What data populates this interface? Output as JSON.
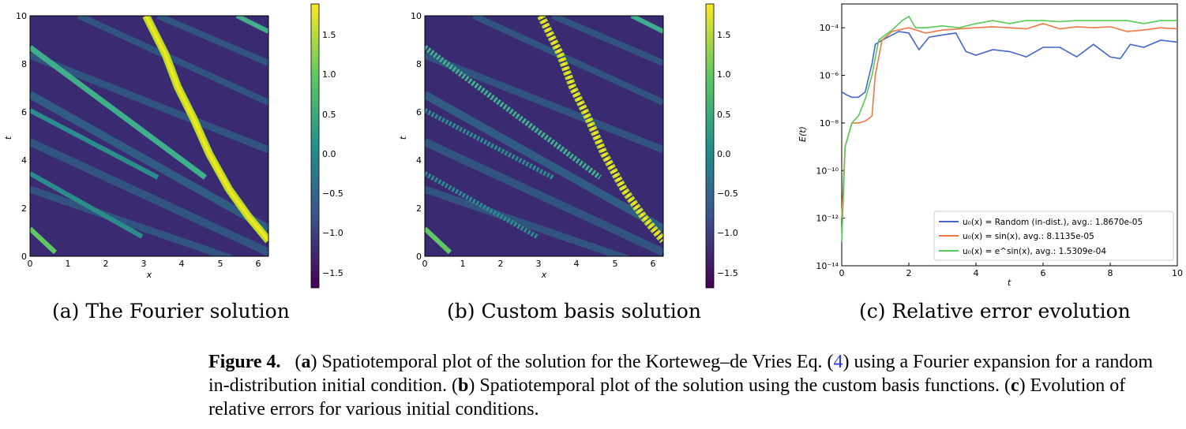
{
  "heatmap_common": {
    "x_ticks": [
      "0",
      "1",
      "2",
      "3",
      "4",
      "5",
      "6"
    ],
    "t_ticks": [
      "0",
      "2",
      "4",
      "6",
      "8",
      "10"
    ],
    "xlabel": "x",
    "ylabel": "t",
    "colorbar_ticks": [
      "1.5",
      "1.0",
      "0.5",
      "0.0",
      "−0.5",
      "−1.0",
      "−1.5"
    ]
  },
  "panel_a": {
    "subcaption": "(a) The Fourier solution"
  },
  "panel_b": {
    "subcaption": "(b) Custom basis solution"
  },
  "panel_c": {
    "subcaption": "(c) Relative error evolution",
    "legend": [
      {
        "prefix": "u₀(x) = Random (in-dist.), avg.: 1.8670e-05",
        "color": "#4466cc"
      },
      {
        "prefix": "u₀(x) = sin(x), avg.: 8.1135e-05",
        "color": "#ee7744"
      },
      {
        "prefix": "u₀(x) = e^sin(x), avg.: 1.5309e-04",
        "color": "#55cc55"
      }
    ]
  },
  "caption": {
    "label": "Figure 4.",
    "a": "a",
    "text_a": ") Spatiotemporal plot of the solution for the Korteweg–de Vries Eq. (",
    "ref": "4",
    "text_a2": ") using a Fourier expansion for a random in-distribution initial condition. (",
    "b": "b",
    "text_b": ") Spatiotemporal plot of the solution using the custom basis functions. (",
    "c": "c",
    "text_c": ") Evolution of relative errors for various initial conditions."
  },
  "chart_data": [
    {
      "type": "heatmap",
      "title": "",
      "xlabel": "x",
      "ylabel": "t",
      "xlim": [
        0,
        6.28
      ],
      "ylim": [
        0,
        10
      ],
      "colorbar_range": [
        -1.7,
        1.85
      ],
      "colormap": "viridis"
    },
    {
      "type": "heatmap",
      "title": "",
      "xlabel": "x",
      "ylabel": "t",
      "xlim": [
        0,
        6.28
      ],
      "ylim": [
        0,
        10
      ],
      "colorbar_range": [
        -1.7,
        1.85
      ],
      "colormap": "viridis"
    },
    {
      "type": "line",
      "title": "",
      "xlabel": "t",
      "ylabel": "E(t)",
      "xlim": [
        0,
        10
      ],
      "ylim": [
        1e-14,
        0.001
      ],
      "yscale": "log",
      "x_ticks": [
        "0",
        "2",
        "4",
        "6",
        "8",
        "10"
      ],
      "y_ticks": [
        "10⁻¹⁴",
        "10⁻¹²",
        "10⁻¹⁰",
        "10⁻⁸",
        "10⁻⁶",
        "10⁻⁴"
      ],
      "legend_position": "lower right",
      "series": [
        {
          "name": "u₀(x) = Random (in-dist.), avg.: 1.8670e-05",
          "color": "#4466cc",
          "x": [
            0,
            0.15,
            0.3,
            0.5,
            0.7,
            0.8,
            0.9,
            1.0,
            1.2,
            1.5,
            1.7,
            2.0,
            2.3,
            2.6,
            3.0,
            3.4,
            3.7,
            4.0,
            4.5,
            5.0,
            5.5,
            6.0,
            6.5,
            7.0,
            7.5,
            8.0,
            8.3,
            8.6,
            9.0,
            9.5,
            10.0
          ],
          "y": [
            2e-07,
            1.5e-07,
            1.2e-07,
            1.2e-07,
            2e-07,
            8e-07,
            3e-06,
            2e-05,
            3e-05,
            5e-05,
            7e-05,
            6e-05,
            1.2e-05,
            4e-05,
            5e-05,
            6e-05,
            1e-05,
            7e-06,
            1.2e-05,
            1e-05,
            6e-06,
            1.5e-05,
            1.5e-05,
            6e-06,
            2e-05,
            6e-06,
            5e-06,
            2e-05,
            1.5e-05,
            3e-05,
            2.5e-05
          ]
        },
        {
          "name": "u₀(x) = sin(x), avg.: 8.1135e-05",
          "color": "#ee7744",
          "x": [
            0,
            0.1,
            0.3,
            0.5,
            0.7,
            0.8,
            0.9,
            1.0,
            1.2,
            1.5,
            2.0,
            2.5,
            3.0,
            3.5,
            4.0,
            4.5,
            5.0,
            5.5,
            6.0,
            6.5,
            7.0,
            7.5,
            8.0,
            8.5,
            9.0,
            9.5,
            10.0
          ],
          "y": [
            1e-12,
            1e-09,
            1e-08,
            1e-08,
            1.2e-08,
            1.5e-08,
            2e-08,
            1e-06,
            3e-05,
            7e-05,
            0.0001,
            6e-05,
            8e-05,
            9e-05,
            0.0001,
            0.00011,
            0.0001,
            9e-05,
            0.00015,
            9e-05,
            0.00011,
            0.0001,
            0.00011,
            7e-05,
            8e-05,
            0.0001,
            9e-05
          ]
        },
        {
          "name": "u₀(x) = e^sin(x), avg.: 1.5309e-04",
          "color": "#55cc55",
          "x": [
            0,
            0.1,
            0.3,
            0.5,
            0.7,
            0.9,
            1.1,
            1.3,
            1.5,
            1.8,
            2.0,
            2.2,
            2.5,
            3.0,
            3.5,
            4.0,
            4.5,
            5.0,
            5.5,
            6.0,
            6.5,
            7.0,
            7.5,
            8.0,
            8.5,
            9.0,
            9.5,
            10.0
          ],
          "y": [
            1e-13,
            1e-09,
            1e-08,
            2e-08,
            1e-07,
            1e-06,
            3e-05,
            5e-05,
            8e-05,
            0.0002,
            0.0003,
            0.0001,
            0.0001,
            0.00012,
            0.0001,
            0.00015,
            0.0002,
            0.00015,
            0.0002,
            0.0002,
            0.00018,
            0.0002,
            0.0002,
            0.0002,
            0.0002,
            0.00015,
            0.0002,
            0.0002
          ]
        }
      ]
    }
  ]
}
